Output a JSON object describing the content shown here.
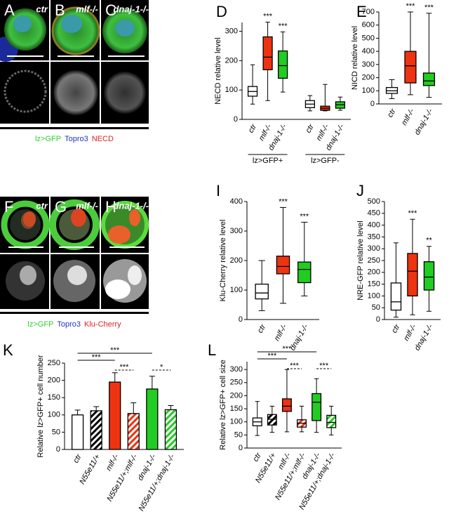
{
  "image_panels": [
    {
      "letter": "A",
      "label": "ctr"
    },
    {
      "letter": "B",
      "label": "mlf-/-"
    },
    {
      "letter": "C",
      "label": "dnaj-1-/-"
    },
    {
      "letter": "F",
      "label": "ctr"
    },
    {
      "letter": "G",
      "label": "mlf-/-"
    },
    {
      "letter": "H",
      "label": "dnaj-1-/-"
    }
  ],
  "image_legends": [
    [
      {
        "text": "lz>GFP",
        "color": "#33cc33"
      },
      {
        "text": "Topro3",
        "color": "#2233cc"
      },
      {
        "text": "NECD",
        "color": "#dd2222"
      }
    ],
    [
      {
        "text": "lz>GFP",
        "color": "#33cc33"
      },
      {
        "text": "Topro3",
        "color": "#2233cc"
      },
      {
        "text": "Klu-Cherry",
        "color": "#dd2222"
      }
    ]
  ],
  "chart_data": [
    {
      "type": "box",
      "panel": "D",
      "y_label": "NECD relative level",
      "categories": [
        "ctr",
        "mlf-/-",
        "dnaj-1-/-",
        "ctr",
        "mlf-/-",
        "dnaj-1-/-"
      ],
      "groups": [
        "lz>GFP+",
        "lz>GFP-"
      ],
      "boxes": [
        {
          "min": 52,
          "q1": 79,
          "median": 95,
          "q3": 112,
          "max": 186
        },
        {
          "min": 64,
          "q1": 169,
          "median": 212,
          "q3": 281,
          "max": 331
        },
        {
          "min": 93,
          "q1": 140,
          "median": 183,
          "q3": 233,
          "max": 298
        },
        {
          "min": 29,
          "q1": 40,
          "median": 52,
          "q3": 64,
          "max": 81
        },
        {
          "min": 29,
          "q1": 31,
          "median": 38,
          "q3": 45,
          "max": 119
        },
        {
          "min": 31,
          "q1": 38,
          "median": 50,
          "q3": 60,
          "max": 76
        }
      ],
      "colors": [
        "#ffffff",
        "#ee3311",
        "#22cc22",
        "#ffffff",
        "#ee3311",
        "#22cc22"
      ],
      "annotations": [
        null,
        "***",
        "***",
        null,
        null,
        null
      ],
      "ylim": [
        0,
        330
      ],
      "yticks": [
        0,
        100,
        200,
        300
      ]
    },
    {
      "type": "box",
      "panel": "E",
      "y_label": "NICD relative level",
      "categories": [
        "ctr",
        "mlf-/-",
        "dnaj-1-/-"
      ],
      "boxes": [
        {
          "min": 40,
          "q1": 80,
          "median": 100,
          "q3": 125,
          "max": 185
        },
        {
          "min": 70,
          "q1": 160,
          "median": 290,
          "q3": 400,
          "max": 700
        },
        {
          "min": 50,
          "q1": 140,
          "median": 175,
          "q3": 235,
          "max": 690
        }
      ],
      "colors": [
        "#ffffff",
        "#ee3311",
        "#22cc22"
      ],
      "annotations": [
        null,
        "***",
        "***"
      ],
      "ylim": [
        0,
        700
      ],
      "yticks": [
        0,
        100,
        200,
        300,
        400,
        500,
        600,
        700
      ]
    },
    {
      "type": "box",
      "panel": "I",
      "y_label": "Klu-Cherry relative level",
      "categories": [
        "ctr",
        "mlf-/-",
        "dnaj-1-/-"
      ],
      "boxes": [
        {
          "min": 30,
          "q1": 70,
          "median": 90,
          "q3": 120,
          "max": 200
        },
        {
          "min": 55,
          "q1": 155,
          "median": 180,
          "q3": 215,
          "max": 380
        },
        {
          "min": 80,
          "q1": 125,
          "median": 170,
          "q3": 195,
          "max": 330
        }
      ],
      "colors": [
        "#ffffff",
        "#ee3311",
        "#22cc22"
      ],
      "annotations": [
        null,
        "***",
        "***"
      ],
      "ylim": [
        0,
        400
      ],
      "yticks": [
        0,
        100,
        200,
        300,
        400
      ]
    },
    {
      "type": "box",
      "panel": "J",
      "y_label": "NRE-GFP relative level",
      "categories": [
        "ctr",
        "mlf-/-",
        "dnaj-1-/-"
      ],
      "boxes": [
        {
          "min": 10,
          "q1": 40,
          "median": 75,
          "q3": 155,
          "max": 325
        },
        {
          "min": 20,
          "q1": 100,
          "median": 205,
          "q3": 280,
          "max": 425
        },
        {
          "min": 35,
          "q1": 125,
          "median": 180,
          "q3": 245,
          "max": 310
        }
      ],
      "colors": [
        "#ffffff",
        "#ee3311",
        "#22cc22"
      ],
      "annotations": [
        null,
        "***",
        "**"
      ],
      "ylim": [
        0,
        500
      ],
      "yticks": [
        0,
        50,
        100,
        150,
        200,
        250,
        300,
        350,
        400,
        450,
        500
      ]
    },
    {
      "type": "bar",
      "panel": "K",
      "y_label": "Relative lz>GFP+ cell number",
      "categories": [
        "ctr",
        "N55e11/+",
        "mlf-/-",
        "N55e11/+;mlf-/-",
        "dnaj-1-/-",
        "N55e11/+;dnaj-1-/-"
      ],
      "values": [
        100,
        112,
        195,
        104,
        175,
        115
      ],
      "errors": [
        14,
        12,
        27,
        31,
        37,
        12
      ],
      "colors": [
        "#ffffff",
        "#ffffff",
        "#ee3311",
        "#ee3311",
        "#22cc22",
        "#22cc22"
      ],
      "hatched": [
        false,
        true,
        false,
        true,
        false,
        true
      ],
      "comparisons": [
        {
          "from": 0,
          "to": 4,
          "label": "***",
          "dashed": false
        },
        {
          "from": 0,
          "to": 2,
          "label": "***",
          "dashed": false
        },
        {
          "from": 2,
          "to": 3,
          "label": "***",
          "dashed": true
        },
        {
          "from": 4,
          "to": 5,
          "label": "*",
          "dashed": true
        }
      ],
      "ylim": [
        0,
        250
      ],
      "yticks": [
        0,
        50,
        100,
        150,
        200,
        250
      ]
    },
    {
      "type": "box",
      "panel": "L",
      "y_label": "Relative lz>GFP+ cell size",
      "categories": [
        "ctr",
        "N55e11/+",
        "mlf-/-",
        "N55e11/+;mlf-/-",
        "dnaj-1-/-",
        "N55e11/+;dnaj-1-/-"
      ],
      "boxes": [
        {
          "min": 48,
          "q1": 85,
          "median": 100,
          "q3": 115,
          "max": 178
        },
        {
          "min": 60,
          "q1": 88,
          "median": 110,
          "q3": 128,
          "max": 160
        },
        {
          "min": 62,
          "q1": 140,
          "median": 160,
          "q3": 188,
          "max": 300
        },
        {
          "min": 62,
          "q1": 80,
          "median": 95,
          "q3": 108,
          "max": 160
        },
        {
          "min": 60,
          "q1": 105,
          "median": 175,
          "q3": 208,
          "max": 265
        },
        {
          "min": 50,
          "q1": 78,
          "median": 98,
          "q3": 125,
          "max": 160
        }
      ],
      "colors": [
        "#ffffff",
        "#ffffff",
        "#ee3311",
        "#ee3311",
        "#22cc22",
        "#22cc22"
      ],
      "hatched": [
        false,
        true,
        false,
        true,
        false,
        true
      ],
      "comparisons": [
        {
          "from": 0,
          "to": 4,
          "label": "***",
          "dashed": false
        },
        {
          "from": 0,
          "to": 2,
          "label": "***",
          "dashed": false
        },
        {
          "from": 2,
          "to": 3,
          "label": "***",
          "dashed": true
        },
        {
          "from": 4,
          "to": 5,
          "label": "***",
          "dashed": true
        }
      ],
      "ylim": [
        0,
        330
      ],
      "yticks": [
        0,
        50,
        100,
        150,
        200,
        250,
        300
      ]
    }
  ]
}
